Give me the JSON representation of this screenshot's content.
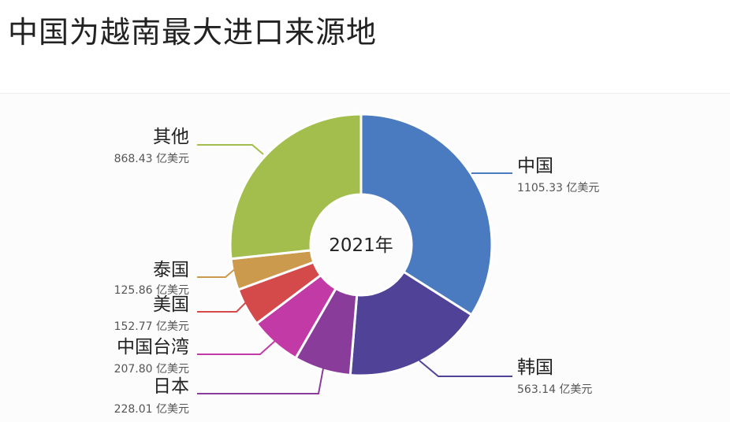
{
  "title": "中国为越南最大进口来源地",
  "chart_data": {
    "type": "pie",
    "donut": true,
    "center_label": "2021年",
    "unit": "亿美元",
    "legend": "none",
    "slices": [
      {
        "label": "中国",
        "value": 1105.33,
        "value_text": "1105.33 亿美元",
        "color": "#4a7ac0"
      },
      {
        "label": "韩国",
        "value": 563.14,
        "value_text": "563.14 亿美元",
        "color": "#4f4297"
      },
      {
        "label": "日本",
        "value": 228.01,
        "value_text": "228.01 亿美元",
        "color": "#8a3c9a"
      },
      {
        "label": "中国台湾",
        "value": 207.8,
        "value_text": "207.80 亿美元",
        "color": "#c23aa6"
      },
      {
        "label": "美国",
        "value": 152.77,
        "value_text": "152.77 亿美元",
        "color": "#d44a4a"
      },
      {
        "label": "泰国",
        "value": 125.86,
        "value_text": "125.86 亿美元",
        "color": "#cc9a4c"
      },
      {
        "label": "其他",
        "value": 868.43,
        "value_text": "868.43 亿美元",
        "color": "#a3be4c"
      }
    ]
  }
}
